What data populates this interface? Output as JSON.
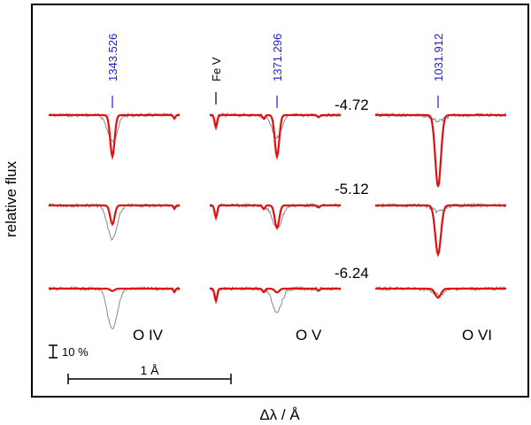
{
  "chart_data": {
    "type": "line",
    "title": "",
    "xlabel": "Δλ / Å",
    "ylabel": "relative flux",
    "grid": false,
    "legend": "none",
    "colors": {
      "model": "#e01010",
      "observed": "#888888",
      "wavelength_marks": "#1a1adb",
      "frame": "#000000"
    },
    "ions": [
      "O IV",
      "O V",
      "O VI"
    ],
    "wavelength_marks": [
      {
        "label": "1343.526",
        "ion": "O IV",
        "color": "#1a1adb"
      },
      {
        "label": "1371.296",
        "ion": "O V",
        "color": "#1a1adb"
      },
      {
        "label": "1031.912",
        "ion": "O VI",
        "color": "#1a1adb"
      },
      {
        "label": "Fe V",
        "ion": "O V",
        "color": "#000000"
      }
    ],
    "rows": [
      "-4.72",
      "-5.12",
      "-6.24"
    ],
    "scale_bars": {
      "flux": "10 %",
      "wavelength": "1 Å"
    },
    "panels": [
      {
        "ion": "O IV",
        "row": "-4.72",
        "model_depth": 0.55,
        "obs_depth": 0.35
      },
      {
        "ion": "O IV",
        "row": "-5.12",
        "model_depth": 0.25,
        "obs_depth": 0.45
      },
      {
        "ion": "O IV",
        "row": "-6.24",
        "model_depth": 0.03,
        "obs_depth": 0.55
      },
      {
        "ion": "O V",
        "row": "-4.72",
        "model_depth": 0.55,
        "obs_depth": 0.3
      },
      {
        "ion": "O V",
        "row": "-5.12",
        "model_depth": 0.3,
        "obs_depth": 0.3
      },
      {
        "ion": "O V",
        "row": "-6.24",
        "model_depth": 0.05,
        "obs_depth": 0.3
      },
      {
        "ion": "O VI",
        "row": "-4.72",
        "model_depth": 0.95,
        "obs_depth": 0.08
      },
      {
        "ion": "O VI",
        "row": "-5.12",
        "model_depth": 0.65,
        "obs_depth": 0.08
      },
      {
        "ion": "O VI",
        "row": "-6.24",
        "model_depth": 0.12,
        "obs_depth": 0.08
      }
    ]
  }
}
